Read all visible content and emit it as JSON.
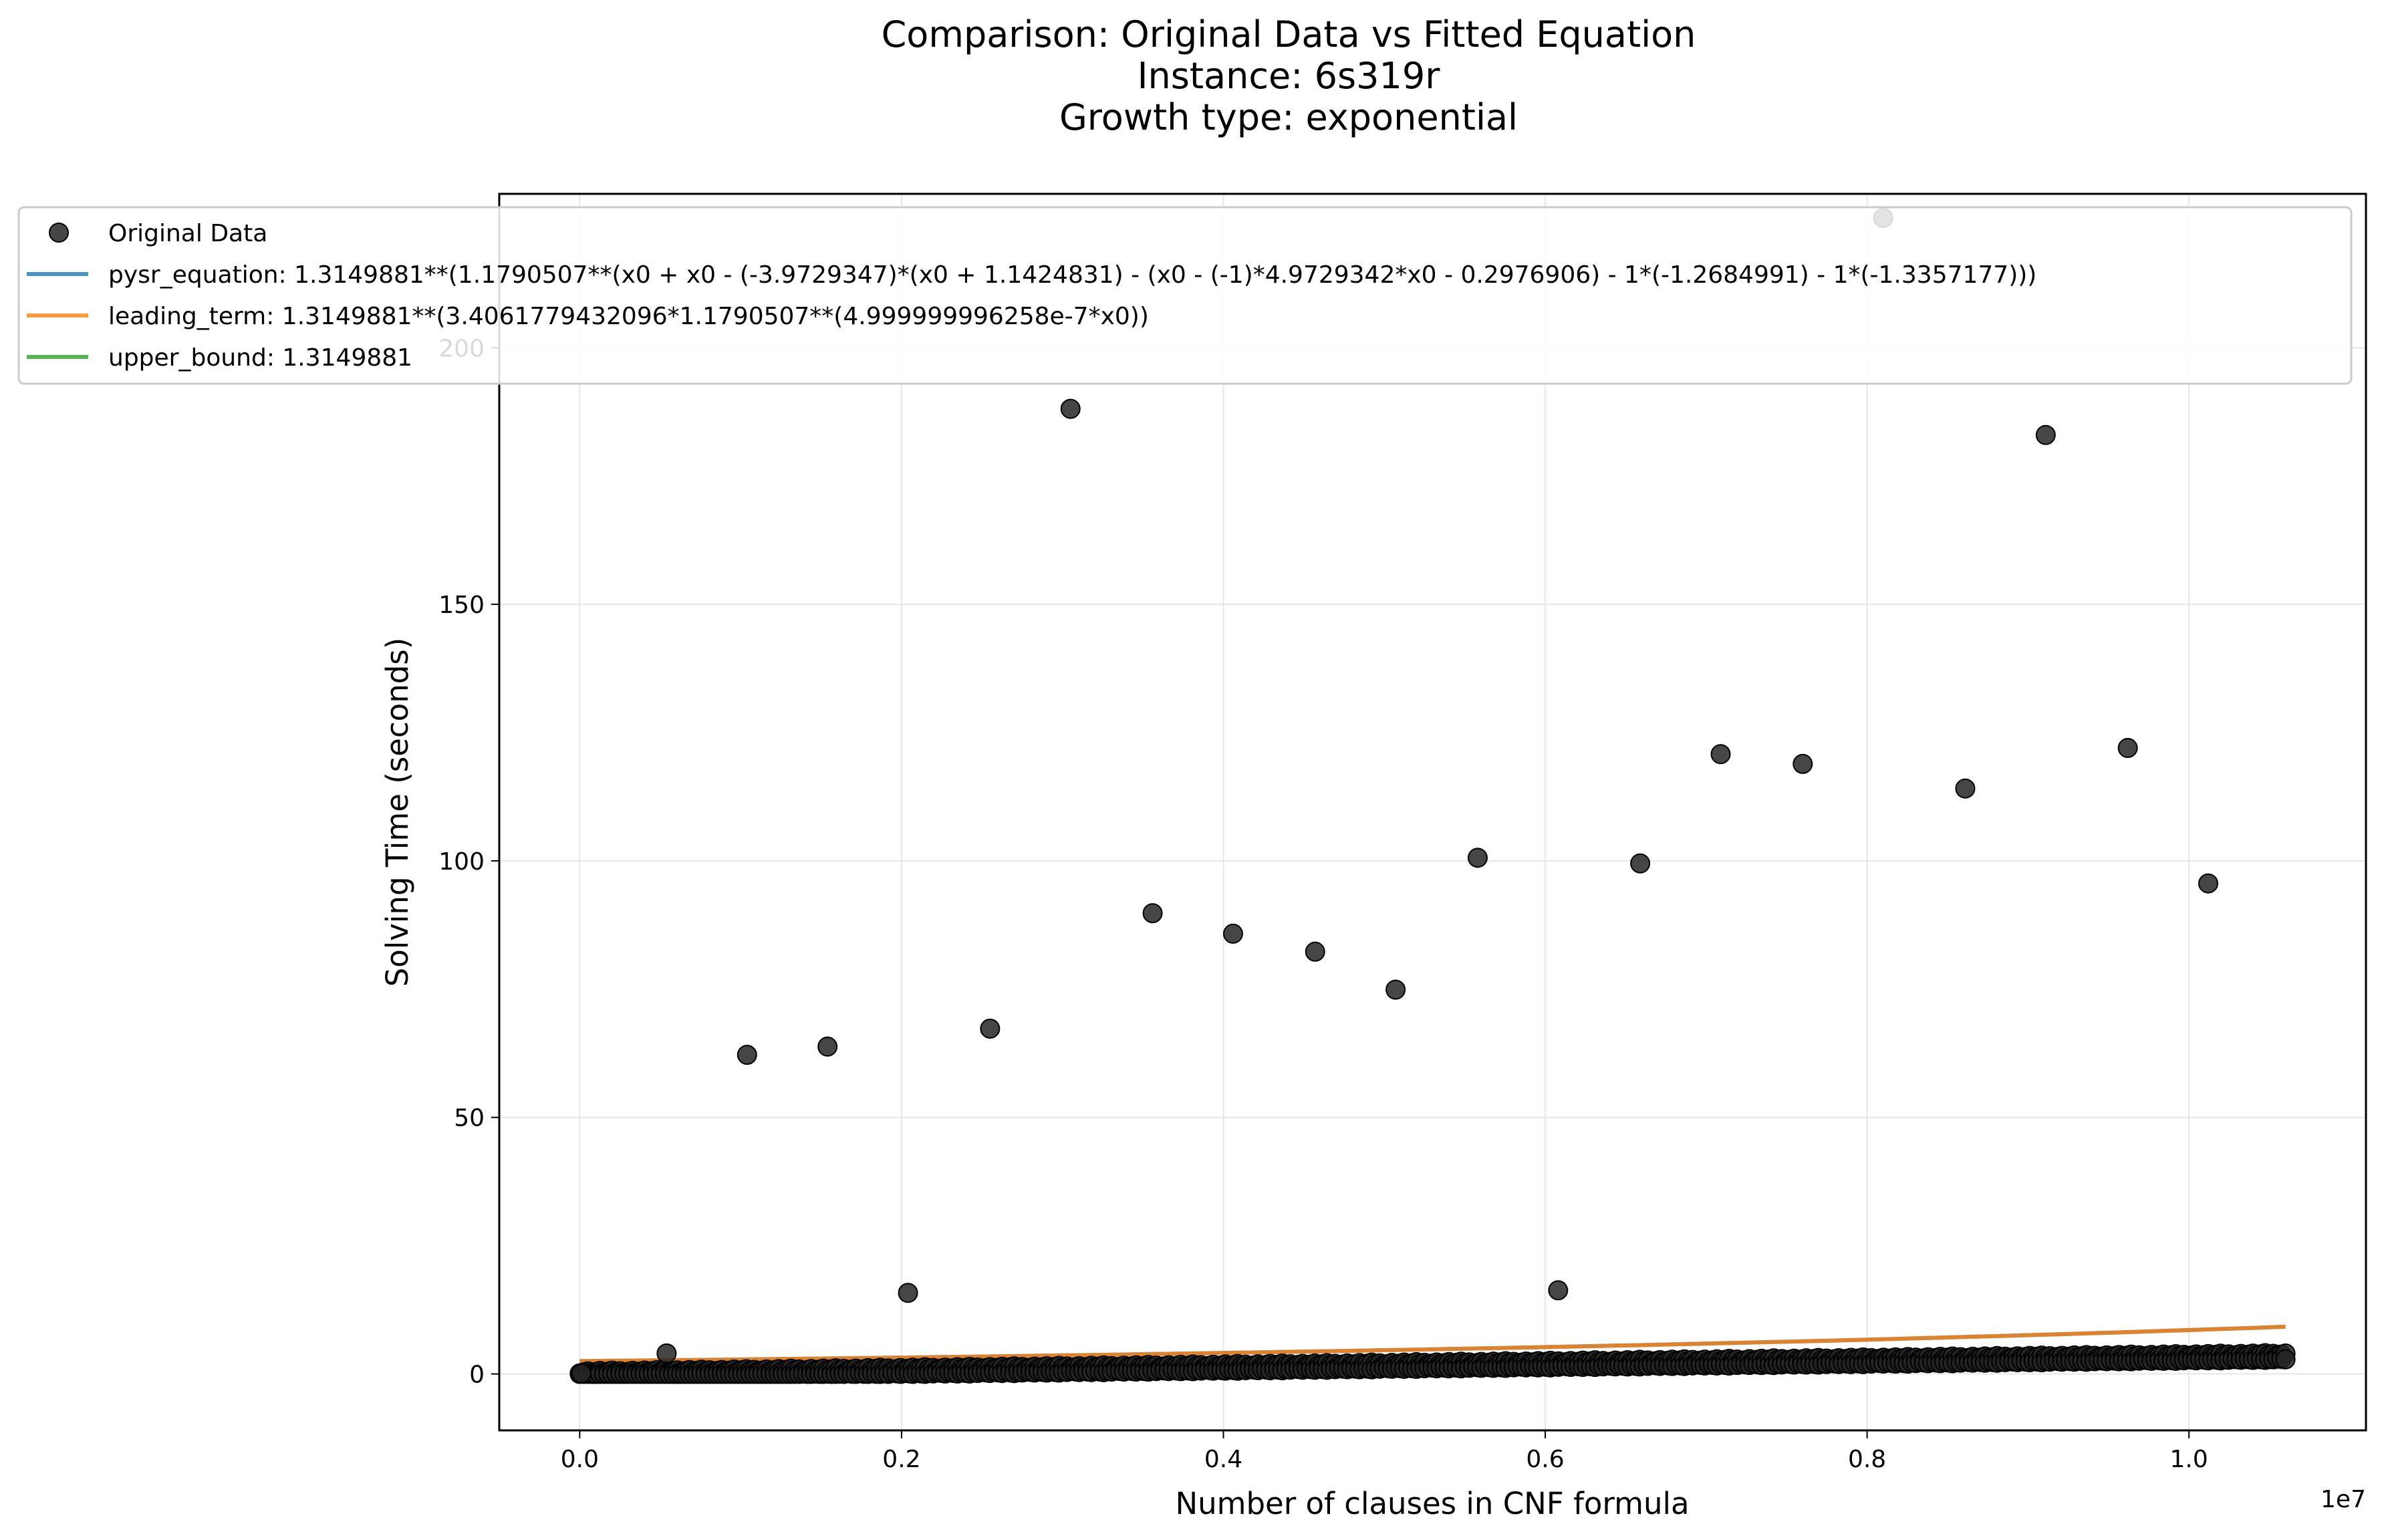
{
  "chart_data": {
    "type": "scatter",
    "title": [
      "Comparison: Original Data vs Fitted Equation",
      "Instance: 6s319r",
      "Growth type: exponential"
    ],
    "xlabel": "Number of clauses in CNF formula",
    "ylabel": "Solving Time (seconds)",
    "x_offset_text": "1e7",
    "xlim": [
      -500000,
      11100000
    ],
    "ylim": [
      -11,
      230
    ],
    "x_ticks": [
      0,
      2000000,
      4000000,
      6000000,
      8000000,
      10000000
    ],
    "x_tick_labels": [
      "0.0",
      "0.2",
      "0.4",
      "0.6",
      "0.8",
      "1.0"
    ],
    "y_ticks": [
      0,
      50,
      100,
      150,
      200
    ],
    "y_tick_labels": [
      "0",
      "50",
      "100",
      "150",
      "200"
    ],
    "grid": true,
    "legend_position": "upper-left",
    "legend": [
      "Original Data",
      "pysr_equation: 1.3149881**(1.1790507**(x0 + x0 - (-3.9729347)*(x0 + 1.1424831) - (x0 - (-1)*4.9729342*x0 - 0.2976906) - 1*(-1.2684991) - 1*(-1.3357177)))",
      "leading_term: 1.3149881**(3.4061779432096*1.1790507**(4.999999996258e-7*x0))",
      "upper_bound: 1.3149881"
    ],
    "colors": {
      "data": "#262626",
      "pysr_equation": "#1f77b4",
      "leading_term": "#ff7f0e",
      "upper_bound": "#2ca02c",
      "grid": "#e6e6e6"
    },
    "series": [
      {
        "name": "Original Data",
        "kind": "scatter",
        "x": [
          10000,
          540000,
          1040000,
          1540000,
          2040000,
          2550000,
          3050000,
          3560000,
          4060000,
          4570000,
          5070000,
          5580000,
          6080000,
          6590000,
          7090000,
          7600000,
          8100000,
          8610000,
          9110000,
          9620000,
          10120000
        ],
        "y": [
          0.1,
          4,
          62.2,
          63.8,
          15.8,
          67.3,
          188.1,
          89.8,
          85.8,
          82.3,
          74.9,
          100.6,
          16.3,
          99.5,
          120.8,
          118.9,
          225.3,
          114.1,
          183,
          122,
          95.6
        ]
      },
      {
        "name": "Original Data (dense baseline)",
        "kind": "scatter-dense",
        "x_range": [
          0,
          10600000
        ],
        "y_range": [
          0.1,
          3.6
        ]
      },
      {
        "name": "pysr_equation: 1.3149881**(1.1790507**(x0 + x0 - (-3.9729347)*(x0 + 1.1424831) - (x0 - (-1)*4.9729342*x0 - 0.2976906) - 1*(-1.2684991) - 1*(-1.3357177)))",
        "kind": "line",
        "x": [
          0,
          10600000
        ],
        "y": [
          2.5,
          9.2
        ]
      },
      {
        "name": "leading_term: 1.3149881**(3.4061779432096*1.1790507**(4.999999996258e-7*x0))",
        "kind": "line",
        "x": [
          0,
          10600000
        ],
        "y": [
          2.5,
          9.2
        ]
      },
      {
        "name": "upper_bound: 1.3149881",
        "kind": "line",
        "x": [
          0,
          10600000
        ],
        "y": [
          1.3149881,
          1.3149881
        ]
      }
    ]
  }
}
